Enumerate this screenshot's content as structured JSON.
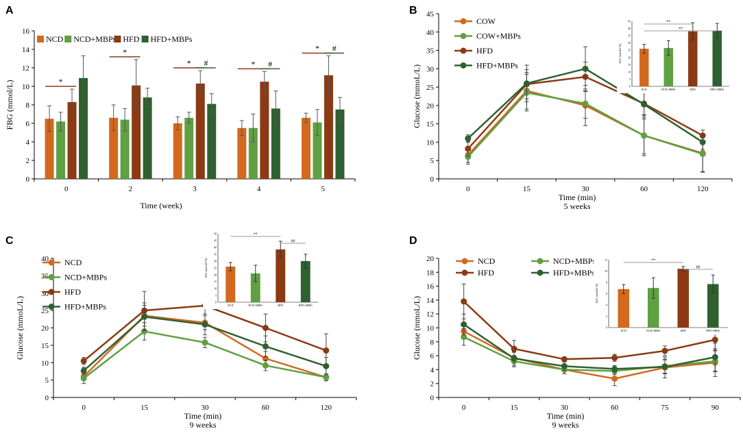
{
  "colors": {
    "orange": "#D2691E",
    "light_green": "#5FA043",
    "dark_brown": "#8B3A14",
    "dark_green": "#2F6030",
    "gray_line": "#999999",
    "error": "#444444"
  },
  "chart_data": [
    {
      "panel": "A",
      "type": "bar",
      "ylabel": "FBG (mmol/L)",
      "xlabel": "Time (week)",
      "ylim": [
        0,
        16
      ],
      "yticks": [
        "0",
        "2",
        "4",
        "6",
        "8",
        "10",
        "12",
        "14",
        "16"
      ],
      "categories": [
        "0",
        "2",
        "3",
        "4",
        "5"
      ],
      "legend": [
        "NCD",
        "NCD+MBPs",
        "HFD",
        "HFD+MBPs"
      ],
      "series": [
        {
          "name": "NCD",
          "values": [
            6.5,
            6.6,
            6.0,
            5.5,
            6.6
          ],
          "errors": [
            1.4,
            1.4,
            0.7,
            0.8,
            0.5
          ]
        },
        {
          "name": "NCD+MBPs",
          "values": [
            6.2,
            6.4,
            6.6,
            5.5,
            6.1
          ],
          "errors": [
            1.0,
            1.2,
            0.6,
            1.5,
            1.4
          ]
        },
        {
          "name": "HFD",
          "values": [
            8.3,
            10.1,
            10.3,
            10.5,
            11.2
          ],
          "errors": [
            1.4,
            2.8,
            1.4,
            1.1,
            2.1
          ]
        },
        {
          "name": "HFD+MBPs",
          "values": [
            10.9,
            8.8,
            8.1,
            7.6,
            7.5
          ],
          "errors": [
            2.4,
            1.0,
            1.1,
            1.9,
            1.3
          ]
        }
      ],
      "annotations": [
        {
          "group": 0,
          "label": "*",
          "from": 0,
          "to": 2
        },
        {
          "group": 1,
          "label": "*",
          "from": 0,
          "to": 2
        },
        {
          "group": 2,
          "label": "*",
          "from": 0,
          "to": 2
        },
        {
          "group": 2,
          "label": "#",
          "from": 2,
          "to": 3
        },
        {
          "group": 3,
          "label": "*",
          "from": 0,
          "to": 2
        },
        {
          "group": 3,
          "label": "#",
          "from": 2,
          "to": 3
        },
        {
          "group": 4,
          "label": "*",
          "from": 0,
          "to": 2
        },
        {
          "group": 4,
          "label": "#",
          "from": 2,
          "to": 3
        }
      ]
    },
    {
      "panel": "B",
      "type": "line",
      "ylabel": "Glucose (mmoL/L)",
      "xlabel": "Time (min)",
      "subtitle": "5 weeks",
      "ylim": [
        0,
        45
      ],
      "yticks": [
        "0",
        "5",
        "10",
        "15",
        "20",
        "25",
        "30",
        "35",
        "40",
        "45"
      ],
      "x": [
        "0",
        "15",
        "30",
        "60",
        "120"
      ],
      "legend_pos": "top-left",
      "series": [
        {
          "name": "COW",
          "values": [
            6.5,
            24.0,
            20.0,
            11.8,
            7.0
          ],
          "errors": [
            2.0,
            5.0,
            5.5,
            5.5,
            5.0
          ]
        },
        {
          "name": "COW+MBPs",
          "values": [
            6.0,
            23.5,
            20.5,
            11.8,
            6.8
          ],
          "errors": [
            2.0,
            5.0,
            4.0,
            5.0,
            5.0
          ]
        },
        {
          "name": "HFD",
          "values": [
            8.2,
            25.8,
            27.8,
            20.5,
            11.8
          ],
          "errors": [
            2.0,
            4.0,
            4.0,
            3.0,
            1.5
          ]
        },
        {
          "name": "HFD+MBPs",
          "values": [
            11.0,
            26.0,
            30.0,
            20.3,
            10.0
          ],
          "errors": [
            1.0,
            5.0,
            6.0,
            4.0,
            2.0
          ]
        }
      ],
      "inset": {
        "ylabel": "AUC (mmol/L*h)",
        "ylim": [
          0,
          45
        ],
        "yticks": [
          "0",
          "5",
          "10",
          "15",
          "20",
          "25",
          "30",
          "35",
          "40",
          "45"
        ],
        "categories": [
          "NCD",
          "NCD+MBPs",
          "HFD",
          "HFD+MBPs"
        ],
        "values": [
          26,
          26.5,
          38,
          38.5
        ],
        "errors": [
          3,
          5,
          6,
          5
        ],
        "sig": [
          {
            "label": "**",
            "from": 0,
            "to": 2
          },
          {
            "label": "**",
            "from": 0,
            "to": 3
          }
        ]
      }
    },
    {
      "panel": "C",
      "type": "line",
      "ylabel": "Glucose (mmoL/L)",
      "xlabel": "Time (min)",
      "subtitle": "9 weeks",
      "ylim": [
        0,
        40
      ],
      "yticks": [
        "0",
        "5",
        "10",
        "15",
        "20",
        "25",
        "30",
        "35",
        "40"
      ],
      "x": [
        "0",
        "15",
        "30",
        "60",
        "120"
      ],
      "legend_pos": "top-left",
      "series": [
        {
          "name": "NCD",
          "values": [
            6.0,
            23.5,
            21.5,
            11.2,
            5.8
          ],
          "errors": [
            1.0,
            3.0,
            2.0,
            2.0,
            1.0
          ]
        },
        {
          "name": "NCD+MBPs",
          "values": [
            5.5,
            19.0,
            15.8,
            9.2,
            5.8
          ],
          "errors": [
            1.5,
            2.5,
            1.5,
            1.5,
            1.0
          ]
        },
        {
          "name": "HFD",
          "values": [
            10.5,
            25.0,
            26.4,
            20.0,
            13.5
          ],
          "errors": [
            1.0,
            5.5,
            5.0,
            4.0,
            4.8
          ]
        },
        {
          "name": "HFD+MBPs",
          "values": [
            7.7,
            23.2,
            21.0,
            14.7,
            9.0
          ],
          "errors": [
            1.0,
            4.0,
            3.0,
            3.0,
            2.5
          ]
        }
      ],
      "inset": {
        "ylabel": "AUC (mmol/L*h)",
        "ylim": [
          0,
          50
        ],
        "yticks": [
          "0",
          "5",
          "10",
          "15",
          "20",
          "25",
          "30",
          "35",
          "40",
          "45",
          "50"
        ],
        "categories": [
          "NCD",
          "NCD+MBPs",
          "HFD",
          "HFD+MBPs"
        ],
        "values": [
          26,
          21,
          38.5,
          30
        ],
        "errors": [
          3,
          6,
          6,
          5
        ],
        "sig": [
          {
            "label": "**",
            "from": 0,
            "to": 2
          },
          {
            "label": "##",
            "from": 2,
            "to": 3
          }
        ]
      }
    },
    {
      "panel": "D",
      "type": "line",
      "ylabel": "Glucose (mmoL/L)",
      "xlabel": "Time (min)",
      "subtitle": "9 weeks",
      "ylim": [
        0,
        20
      ],
      "yticks": [
        "0",
        "2",
        "4",
        "6",
        "8",
        "10",
        "12",
        "14",
        "16",
        "18",
        "20"
      ],
      "x": [
        "0",
        "15",
        "30",
        "60",
        "75",
        "90"
      ],
      "legend_pos": "top",
      "series": [
        {
          "name": "NCD",
          "values": [
            9.5,
            5.7,
            4.0,
            2.7,
            4.3,
            5.0
          ],
          "errors": [
            1.0,
            0.8,
            0.6,
            1.0,
            1.5,
            2.0
          ]
        },
        {
          "name": "NCD+MBPs",
          "values": [
            8.7,
            5.2,
            4.0,
            3.8,
            4.5,
            5.2
          ],
          "errors": [
            1.2,
            0.8,
            0.6,
            0.5,
            1.0,
            1.5
          ]
        },
        {
          "name": "HFD",
          "values": [
            13.8,
            7.0,
            5.5,
            5.7,
            6.7,
            8.3
          ],
          "errors": [
            2.5,
            1.2,
            0.3,
            0.5,
            0.7,
            1.5
          ]
        },
        {
          "name": "HFD+MBPs",
          "values": [
            10.5,
            5.6,
            4.5,
            4.1,
            4.4,
            5.8
          ],
          "errors": [
            1.5,
            1.0,
            0.6,
            0.5,
            1.0,
            2.0
          ]
        }
      ],
      "inset": {
        "ylabel": "AUC (mmol/L*h)",
        "ylim": [
          0,
          12
        ],
        "yticks": [
          "0",
          "2",
          "4",
          "6",
          "8",
          "10",
          "12"
        ],
        "categories": [
          "NCD",
          "NCD+MBPs",
          "HFD",
          "HFD+MBPs"
        ],
        "values": [
          6.8,
          7.0,
          10.4,
          7.7
        ],
        "errors": [
          0.8,
          1.8,
          0.4,
          1.6
        ],
        "sig": [
          {
            "label": "**",
            "from": 0,
            "to": 2
          },
          {
            "label": "##",
            "from": 2,
            "to": 3
          }
        ]
      }
    }
  ]
}
